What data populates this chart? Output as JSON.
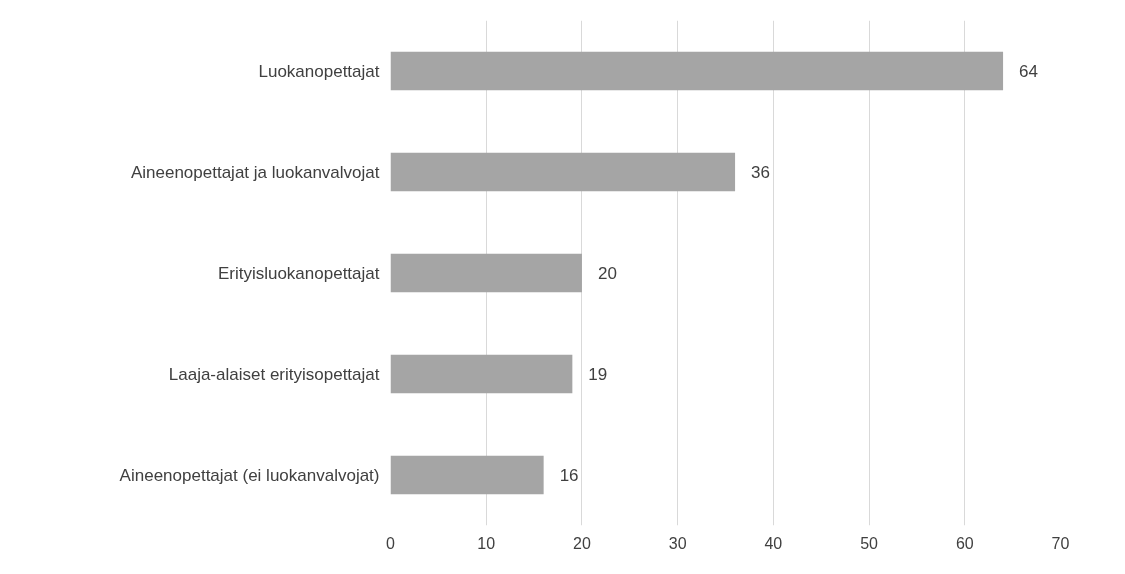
{
  "chart_data": {
    "type": "bar",
    "orientation": "horizontal",
    "categories": [
      "Luokanopettajat",
      "Aineenopettajat ja luokanvalvojat",
      "Erityisluokanopettajat",
      "Laaja-alaiset erityisopettajat",
      "Aineenopettajat (ei luokanvalvojat)"
    ],
    "values": [
      64,
      36,
      20,
      19,
      16
    ],
    "color": "#a5a5a5",
    "xlim": [
      0,
      70
    ],
    "xticks": [
      0,
      10,
      20,
      30,
      40,
      50,
      60,
      70
    ],
    "grid": "x",
    "data_labels": true
  }
}
